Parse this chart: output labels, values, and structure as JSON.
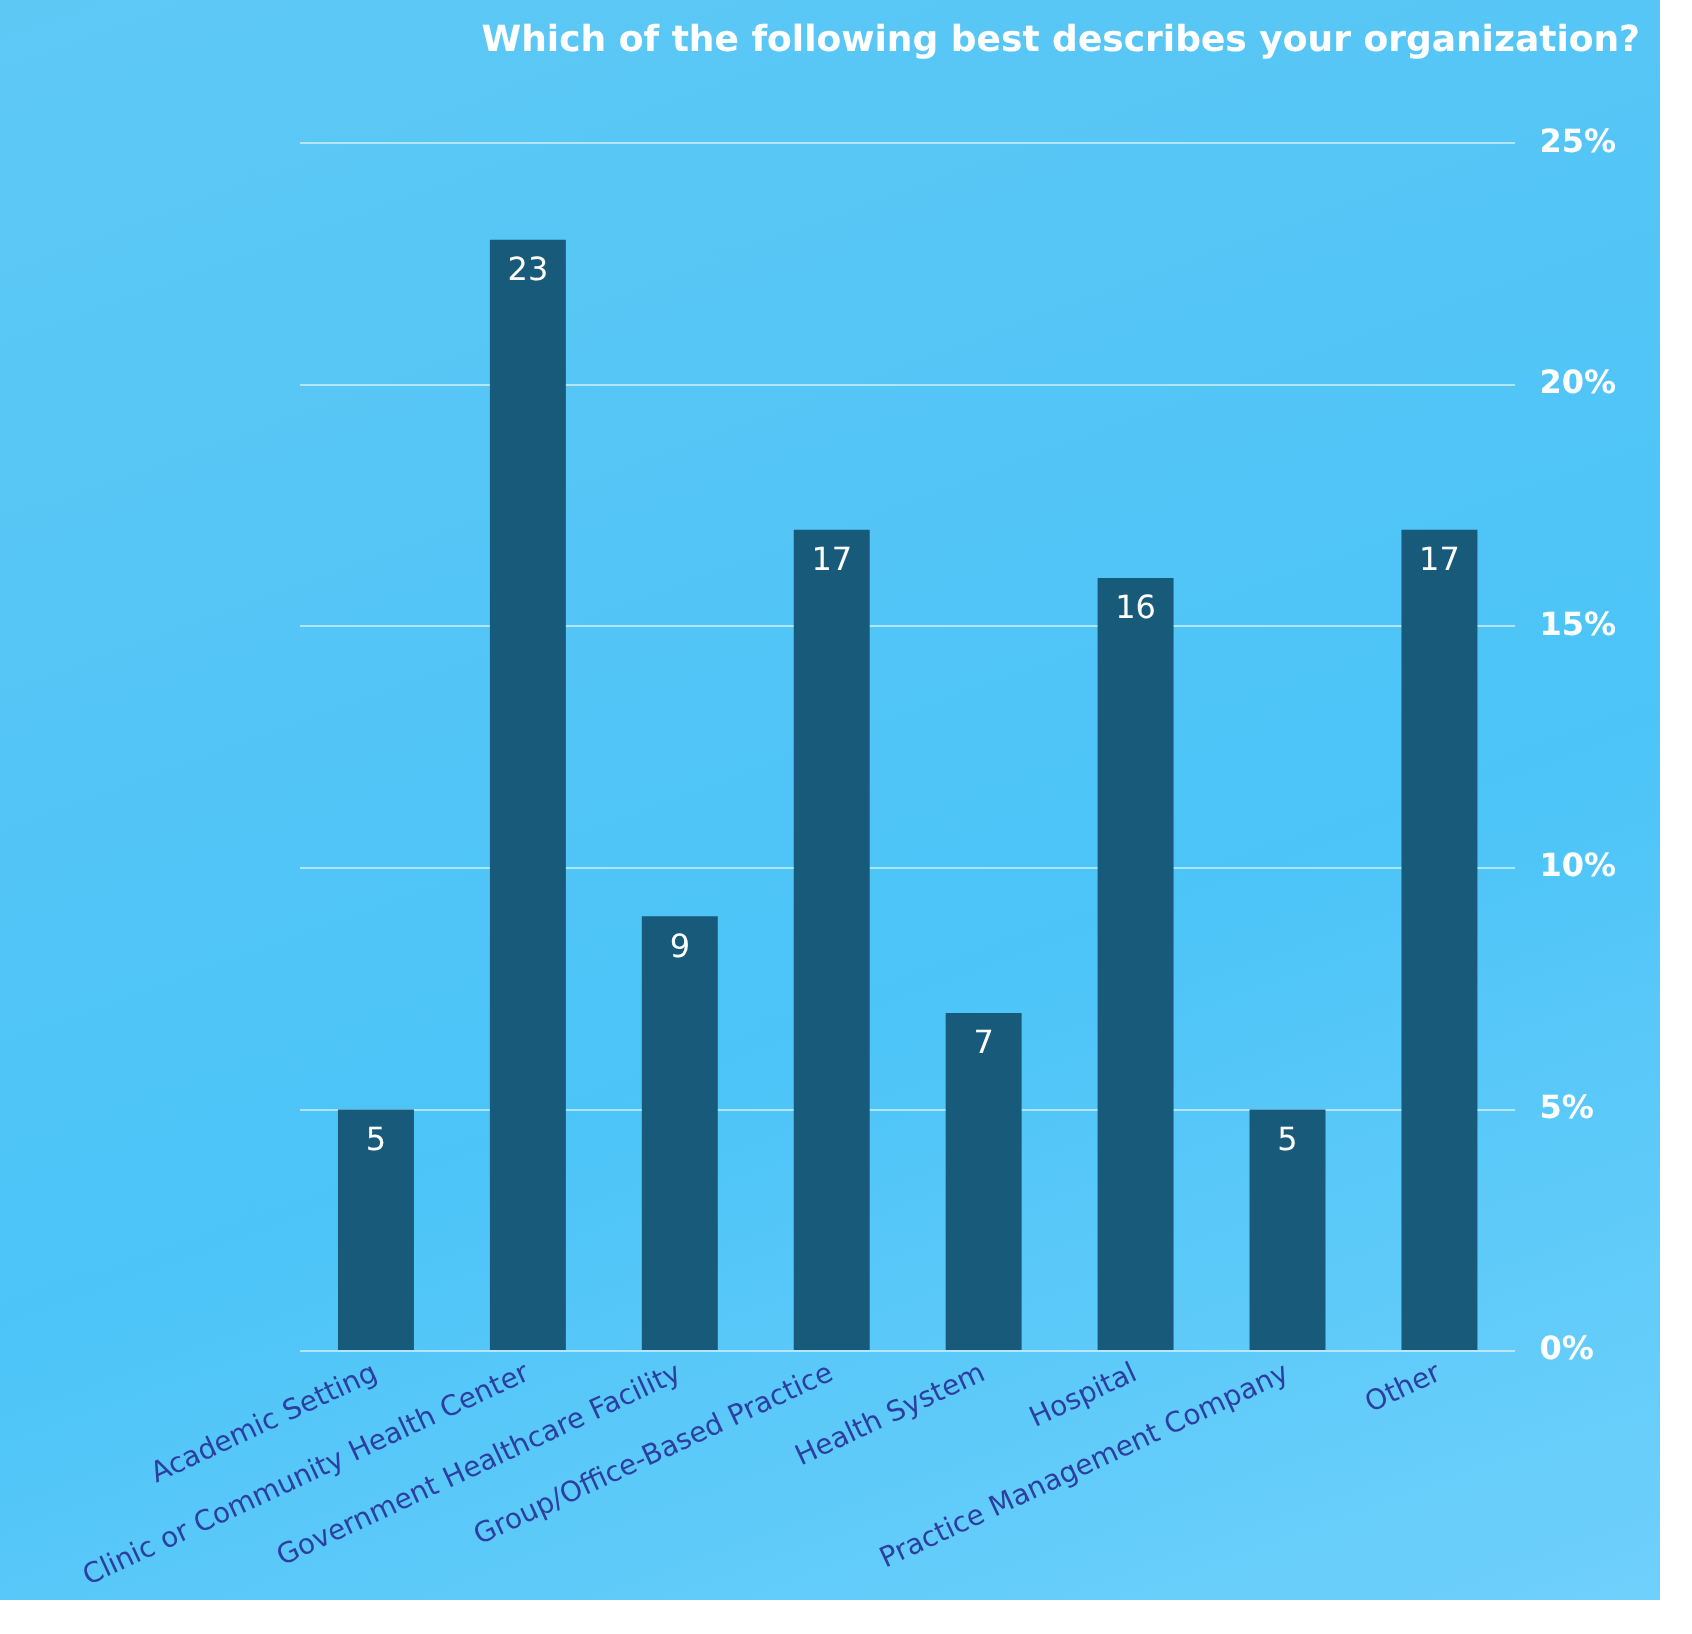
{
  "chart_data": {
    "type": "bar",
    "title": "Which of the following best describes your organization?",
    "categories": [
      "Academic Setting",
      "Clinic or Community Health Center",
      "Government Healthcare Facility",
      "Group/Office-Based Practice",
      "Health System",
      "Hospital",
      "Practice Management Company",
      "Other"
    ],
    "values": [
      5,
      23,
      9,
      17,
      7,
      16,
      5,
      17
    ],
    "color": "#175a79",
    "ylim": [
      0,
      25
    ],
    "yticks": [
      {
        "value": 0,
        "label": "0%"
      },
      {
        "value": 5,
        "label": "5%"
      },
      {
        "value": 10,
        "label": "10%"
      },
      {
        "value": 15,
        "label": "15%"
      },
      {
        "value": 20,
        "label": "20%"
      },
      {
        "value": 25,
        "label": "25%"
      }
    ],
    "grid": "y",
    "data_labels": true,
    "legend": false
  }
}
